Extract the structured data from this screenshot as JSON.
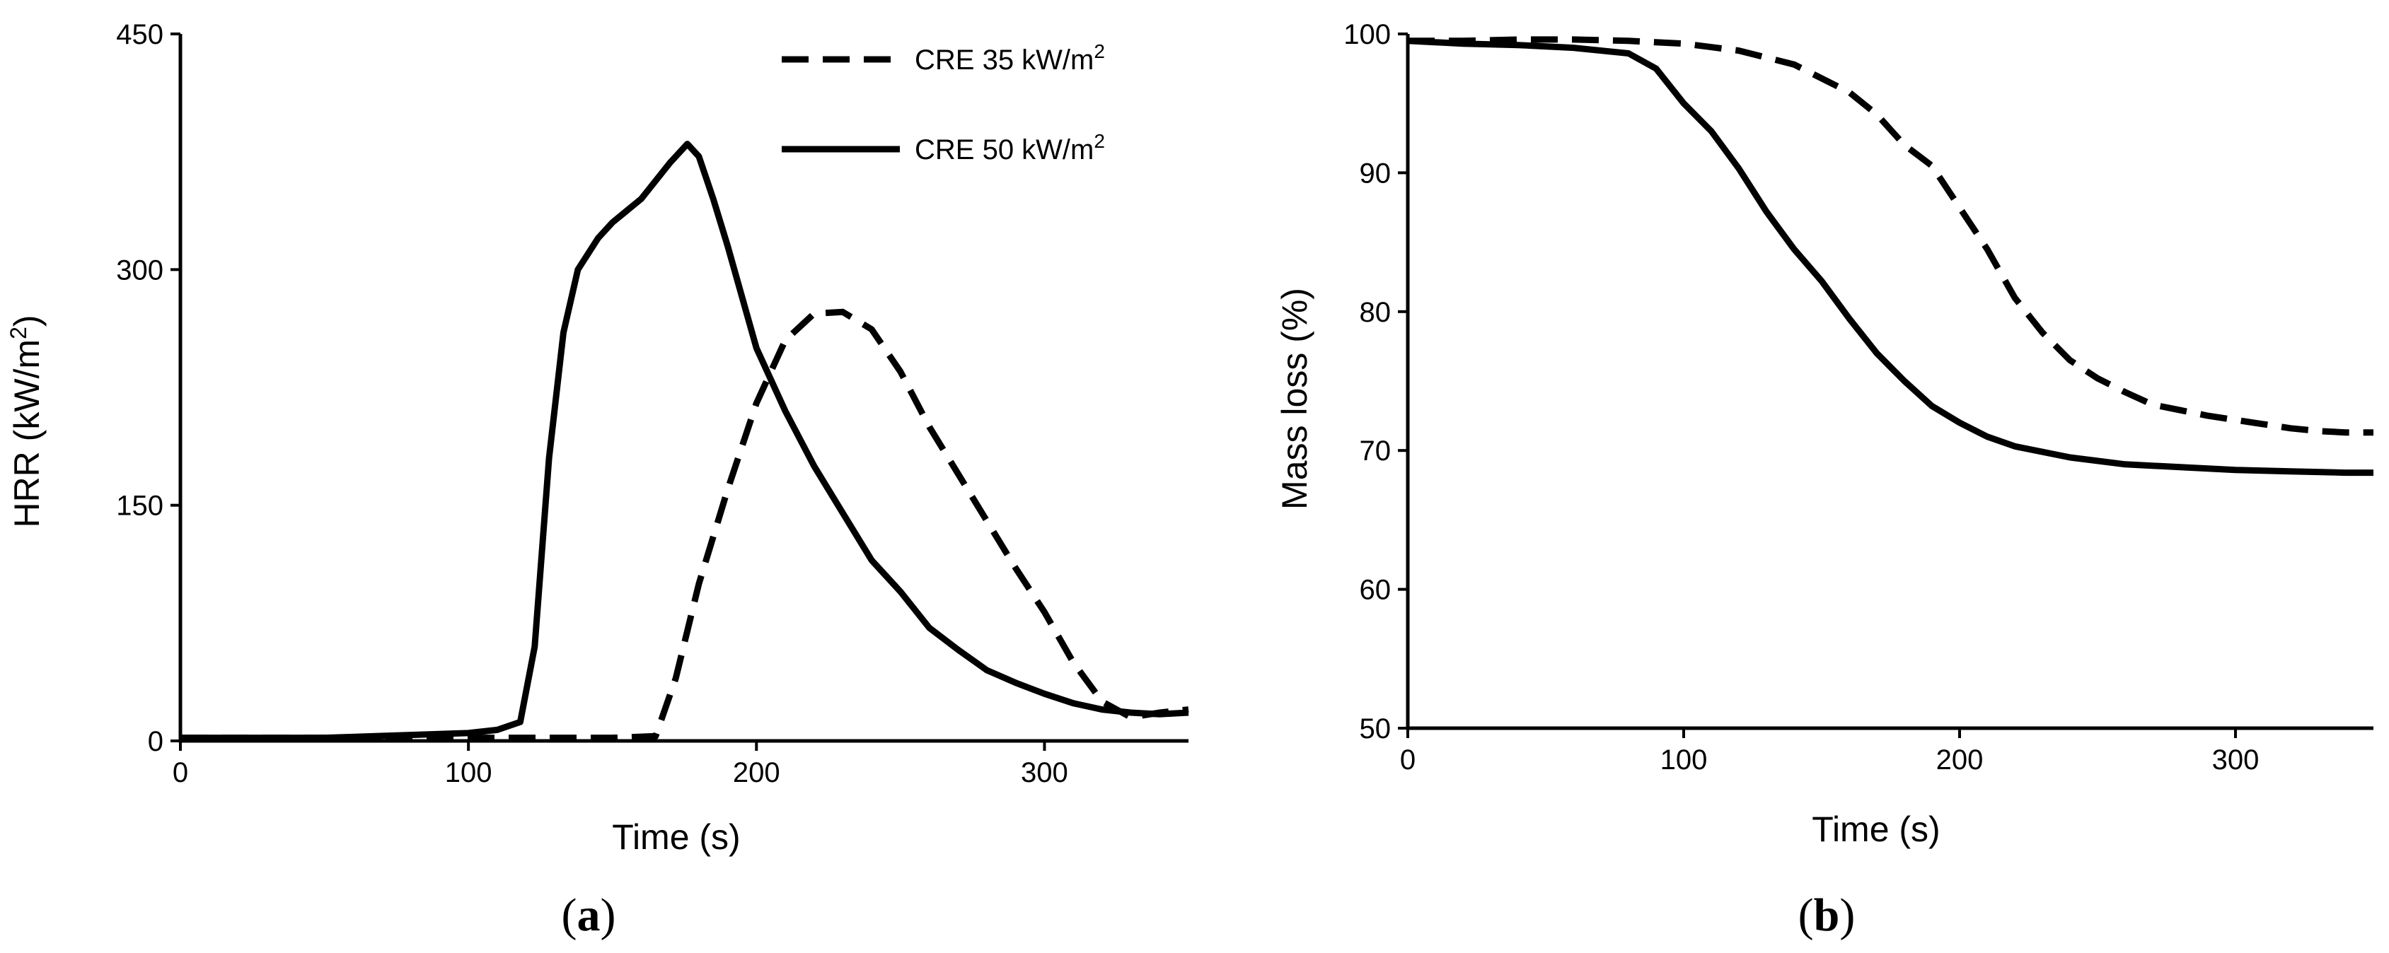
{
  "chart_data": [
    {
      "type": "line",
      "panel_label": "a",
      "xlabel": "Time (s)",
      "ylabel": "HRR (kW/m",
      "ylabel_sup": "2",
      "ylabel_end": ")",
      "xlim": [
        0,
        350
      ],
      "ylim": [
        0,
        450
      ],
      "xticks": [
        0,
        100,
        200,
        300
      ],
      "yticks": [
        0,
        150,
        300,
        450
      ],
      "grid": false,
      "legend": "top-right",
      "series": [
        {
          "name": "CRE 35 kW/m",
          "name_sup": "2",
          "style": "dashed",
          "x": [
            0,
            50,
            100,
            150,
            165,
            172,
            180,
            190,
            200,
            210,
            220,
            230,
            240,
            250,
            260,
            270,
            280,
            290,
            300,
            310,
            320,
            330,
            340,
            350
          ],
          "y": [
            2,
            2,
            2,
            2,
            3,
            40,
            100,
            160,
            215,
            255,
            272,
            273,
            262,
            235,
            200,
            170,
            140,
            110,
            82,
            50,
            25,
            15,
            18,
            20
          ]
        },
        {
          "name": "CRE 50 kW/m",
          "name_sup": "2",
          "style": "solid",
          "x": [
            0,
            50,
            100,
            110,
            118,
            123,
            128,
            133,
            138,
            145,
            150,
            160,
            170,
            176,
            180,
            185,
            190,
            200,
            210,
            220,
            230,
            240,
            250,
            260,
            270,
            280,
            290,
            300,
            310,
            320,
            330,
            340,
            350
          ],
          "y": [
            2,
            2,
            5,
            7,
            12,
            60,
            180,
            260,
            300,
            320,
            330,
            345,
            368,
            380,
            372,
            345,
            315,
            250,
            210,
            175,
            145,
            115,
            95,
            72,
            58,
            45,
            37,
            30,
            24,
            20,
            18,
            17,
            18
          ]
        }
      ]
    },
    {
      "type": "line",
      "panel_label": "b",
      "xlabel": "Time (s)",
      "ylabel": "Mass loss (%)",
      "xlim": [
        0,
        350
      ],
      "ylim": [
        50,
        100
      ],
      "xticks": [
        0,
        100,
        200,
        300
      ],
      "yticks": [
        50,
        60,
        70,
        80,
        90,
        100
      ],
      "grid": false,
      "series": [
        {
          "style": "dashed",
          "x": [
            0,
            20,
            40,
            60,
            80,
            100,
            120,
            140,
            160,
            170,
            180,
            190,
            200,
            210,
            220,
            230,
            240,
            250,
            260,
            270,
            280,
            290,
            300,
            310,
            320,
            330,
            340,
            350
          ],
          "y": [
            99.5,
            99.5,
            99.6,
            99.6,
            99.5,
            99.3,
            98.8,
            97.8,
            95.8,
            94.2,
            92.0,
            90.5,
            87.5,
            84.5,
            81.0,
            78.5,
            76.5,
            75.2,
            74.2,
            73.3,
            72.9,
            72.5,
            72.2,
            71.9,
            71.6,
            71.4,
            71.3,
            71.3
          ]
        },
        {
          "style": "solid",
          "x": [
            0,
            20,
            40,
            60,
            80,
            90,
            100,
            110,
            120,
            130,
            140,
            150,
            160,
            170,
            180,
            190,
            200,
            210,
            220,
            240,
            260,
            280,
            300,
            320,
            340,
            350
          ],
          "y": [
            99.5,
            99.3,
            99.2,
            99.0,
            98.6,
            97.5,
            95.0,
            93.0,
            90.3,
            87.2,
            84.5,
            82.2,
            79.5,
            77.0,
            75.0,
            73.2,
            72.0,
            71.0,
            70.3,
            69.5,
            69.0,
            68.8,
            68.6,
            68.5,
            68.4,
            68.4
          ]
        }
      ]
    }
  ]
}
